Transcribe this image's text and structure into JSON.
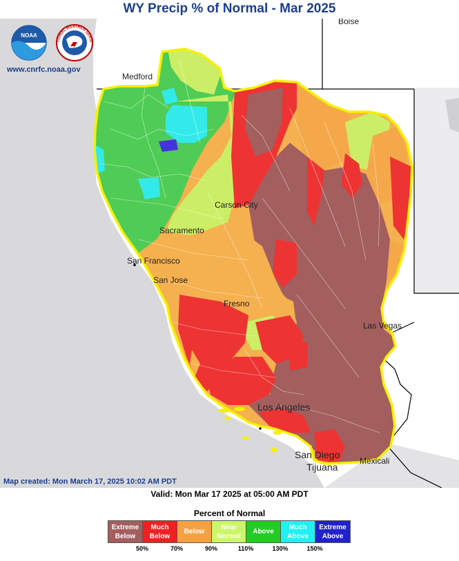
{
  "title": "WY Precip % of Normal - Mar 2025",
  "website": "www.cnrfc.noaa.gov",
  "map_created": "Map created: Mon March 17, 2025 10:02 AM PDT",
  "valid": "Valid: Mon Mar 17 2025 at 05:00 AM PDT",
  "logos": {
    "noaa": "NOAA",
    "nws": "NATIONAL WEATHER SERVICE"
  },
  "cities": {
    "boise": "Boise",
    "medford": "Medford",
    "carson_city": "Carson City",
    "sacramento": "Sacramento",
    "san_francisco": "San Francisco",
    "san_jose": "San Jose",
    "fresno": "Fresno",
    "las_vegas": "Las Vegas",
    "los_angeles": "Los Angeles",
    "san_diego": "San Diego",
    "tijuana": "Tijuana",
    "mexicali": "Mexicali"
  },
  "legend": {
    "title": "Percent of Normal",
    "items": [
      {
        "line1": "Extreme",
        "line2": "Below",
        "color": "#a35e5e",
        "text_color": "#ffffff"
      },
      {
        "line1": "Much",
        "line2": "Below",
        "color": "#ee2222",
        "text_color": "#ffffff"
      },
      {
        "line1": "Below",
        "line2": "",
        "color": "#f5a142",
        "text_color": "#ffffff"
      },
      {
        "line1": "Near",
        "line2": "Normal",
        "color": "#ccf56a",
        "text_color": "#ffffff"
      },
      {
        "line1": "Above",
        "line2": "",
        "color": "#22cc22",
        "text_color": "#ffffff"
      },
      {
        "line1": "Much",
        "line2": "Above",
        "color": "#22f0f0",
        "text_color": "#ffffff"
      },
      {
        "line1": "Extreme",
        "line2": "Above",
        "color": "#2222cc",
        "text_color": "#ffffff"
      }
    ],
    "ticks": [
      "50%",
      "70%",
      "90%",
      "110%",
      "130%",
      "150%"
    ]
  }
}
